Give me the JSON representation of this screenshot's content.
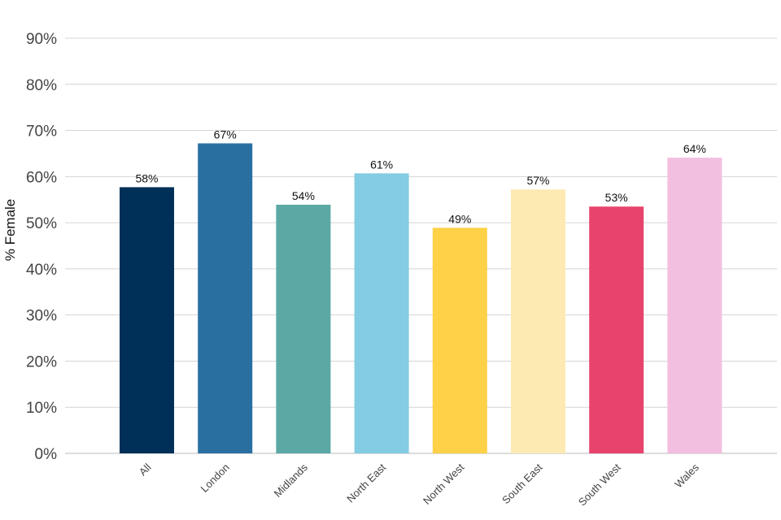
{
  "chart_data": {
    "type": "bar",
    "title": "",
    "xlabel": "",
    "ylabel": "% Female",
    "ylim": [
      0,
      90
    ],
    "yticks": [
      0,
      10,
      20,
      30,
      40,
      50,
      60,
      70,
      80,
      90
    ],
    "ytick_labels": [
      "0%",
      "10%",
      "20%",
      "30%",
      "40%",
      "50%",
      "60%",
      "70%",
      "80%",
      "90%"
    ],
    "grid": true,
    "categories": [
      "All",
      "London",
      "Midlands",
      "North East",
      "North West",
      "South East",
      "South West",
      "Wales"
    ],
    "values": [
      57.7,
      67.2,
      53.9,
      60.7,
      48.9,
      57.2,
      53.5,
      64.1
    ],
    "data_labels": [
      "58%",
      "67%",
      "54%",
      "61%",
      "49%",
      "57%",
      "53%",
      "64%"
    ],
    "colors": [
      "#003057",
      "#2970a1",
      "#5ba8a5",
      "#84cbe4",
      "#ffd146",
      "#fde9b2",
      "#e8436c",
      "#f3bfe0"
    ]
  }
}
